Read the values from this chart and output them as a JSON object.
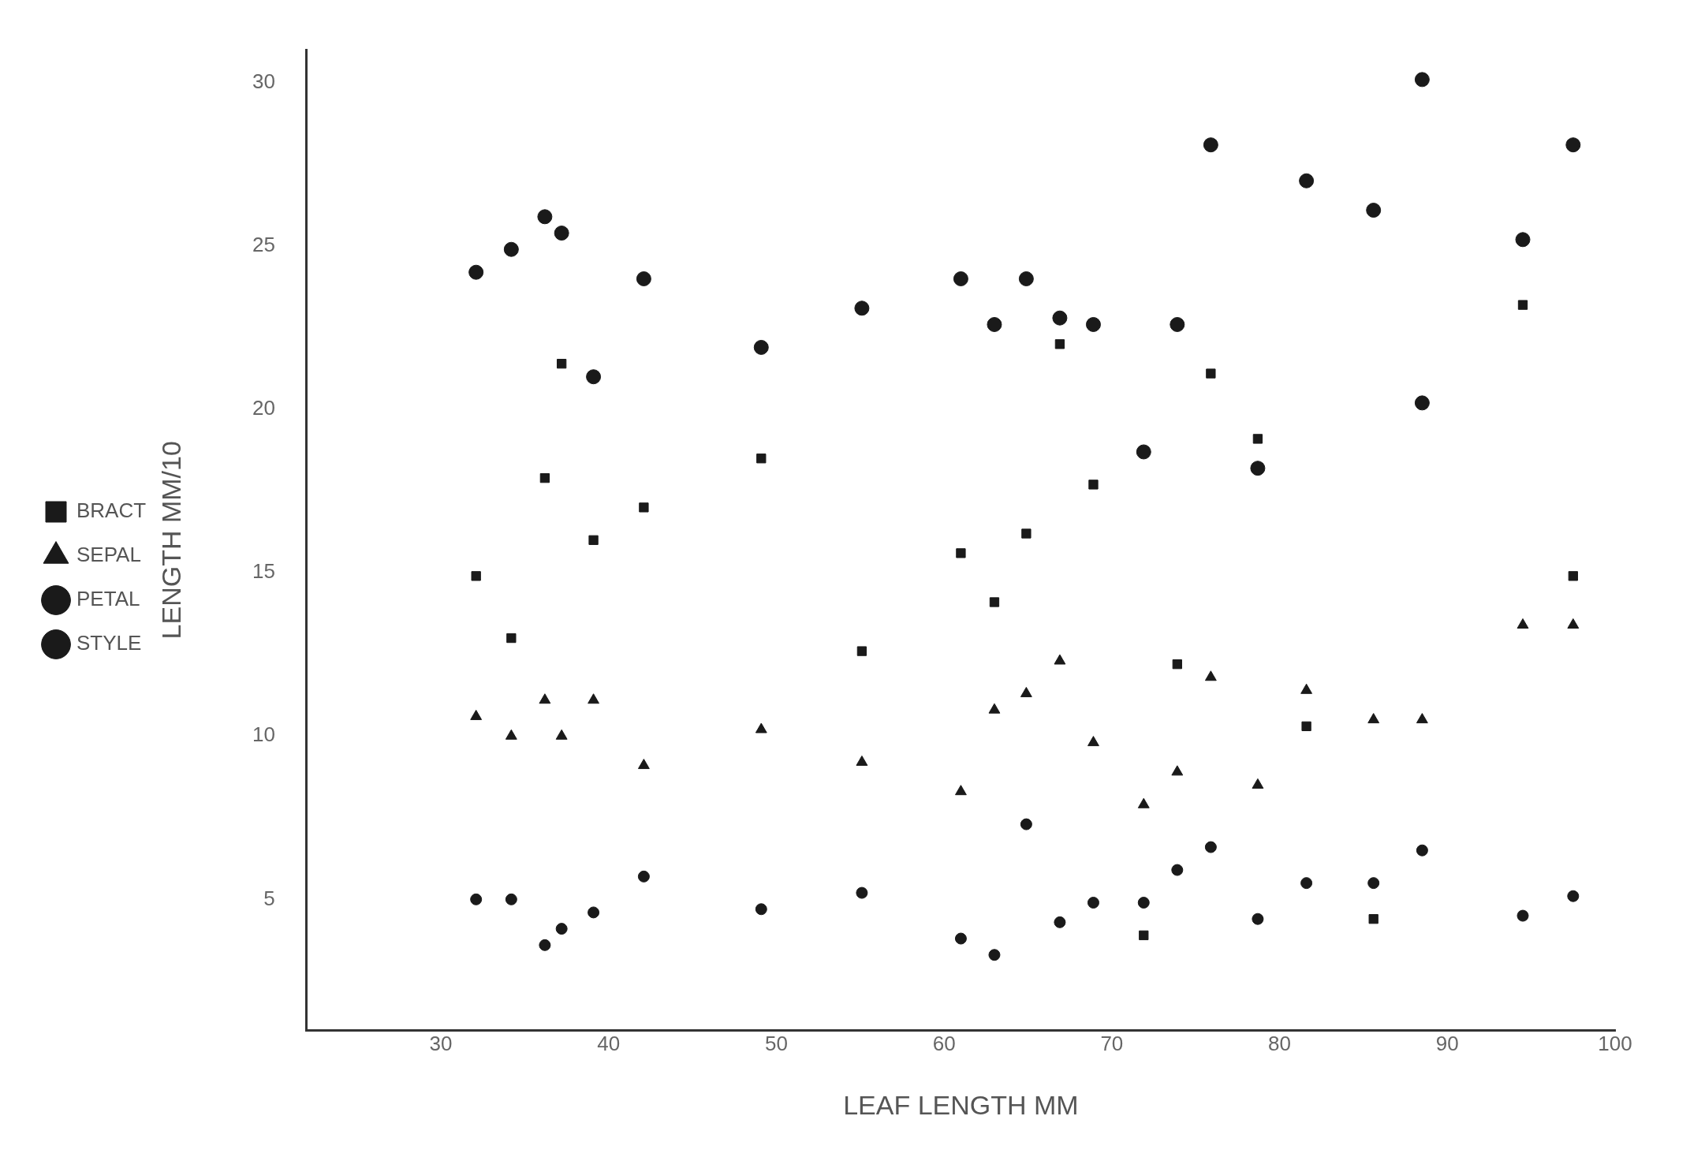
{
  "chart_data": {
    "type": "scatter",
    "xlabel": "LEAF LENGTH MM",
    "ylabel": "LENGTH MM/10",
    "xlim": [
      22,
      100
    ],
    "xticks": [
      30,
      40,
      50,
      60,
      70,
      80,
      90,
      100
    ],
    "ylim": [
      1,
      31
    ],
    "yticks": [
      5,
      10,
      15,
      20,
      25,
      30
    ],
    "grid": false,
    "legend": "left",
    "series": [
      {
        "name": "BRACT",
        "color": "#1a1a1a",
        "marker": "square",
        "x": [
          32.1,
          34.2,
          36.2,
          37.2,
          39.1,
          42.1,
          49.1,
          55.1,
          61,
          63,
          64.9,
          66.9,
          68.9,
          71.9,
          73.9,
          75.9,
          78.7,
          81.6,
          85.6,
          94.5,
          97.5
        ],
        "values": [
          14.9,
          13.0,
          17.9,
          21.4,
          16.0,
          17.0,
          18.5,
          12.6,
          15.6,
          14.1,
          16.2,
          22.0,
          17.7,
          3.9,
          12.2,
          21.1,
          19.1,
          10.3,
          4.4,
          23.2,
          14.9
        ]
      },
      {
        "name": "SEPAL",
        "color": "#1a1a1a",
        "marker": "triangle",
        "x": [
          32.1,
          34.2,
          36.2,
          37.2,
          39.1,
          42.1,
          49.1,
          55.1,
          61,
          63,
          64.9,
          66.9,
          68.9,
          71.9,
          73.9,
          75.9,
          78.7,
          81.6,
          85.6,
          88.5,
          94.5,
          97.5
        ],
        "values": [
          10.6,
          10.0,
          11.1,
          10.0,
          11.1,
          9.1,
          10.2,
          9.2,
          8.3,
          10.8,
          11.3,
          12.3,
          9.8,
          7.9,
          8.9,
          11.8,
          8.5,
          11.4,
          10.5,
          10.5,
          13.4,
          13.4
        ]
      },
      {
        "name": "PETAL",
        "color": "#1a1a1a",
        "marker": "circle",
        "x": [
          32.1,
          34.2,
          36.2,
          37.2,
          39.1,
          42.1,
          49.1,
          55.1,
          61,
          63,
          64.9,
          66.9,
          68.9,
          71.9,
          73.9,
          75.9,
          78.7,
          81.6,
          85.6,
          88.5,
          88.5,
          94.5,
          97.5
        ],
        "values": [
          24.2,
          24.9,
          25.9,
          25.4,
          21.0,
          24.0,
          21.9,
          23.1,
          24.0,
          22.6,
          24.0,
          22.8,
          22.6,
          18.7,
          22.6,
          28.1,
          18.2,
          27.0,
          26.1,
          30.1,
          20.2,
          25.2,
          28.1
        ]
      },
      {
        "name": "STYLE",
        "color": "#1a1a1a",
        "marker": "circle",
        "x": [
          32.1,
          34.2,
          36.2,
          37.2,
          39.1,
          42.1,
          49.1,
          55.1,
          61,
          63,
          64.9,
          66.9,
          68.9,
          71.9,
          73.9,
          75.9,
          78.7,
          81.6,
          85.6,
          88.5,
          94.5,
          97.5
        ],
        "values": [
          5.0,
          5.0,
          3.6,
          4.1,
          4.6,
          5.7,
          4.7,
          5.2,
          3.8,
          3.3,
          7.3,
          4.3,
          4.9,
          4.9,
          5.9,
          6.6,
          4.4,
          5.5,
          5.5,
          6.5,
          4.5,
          5.1
        ]
      }
    ]
  }
}
